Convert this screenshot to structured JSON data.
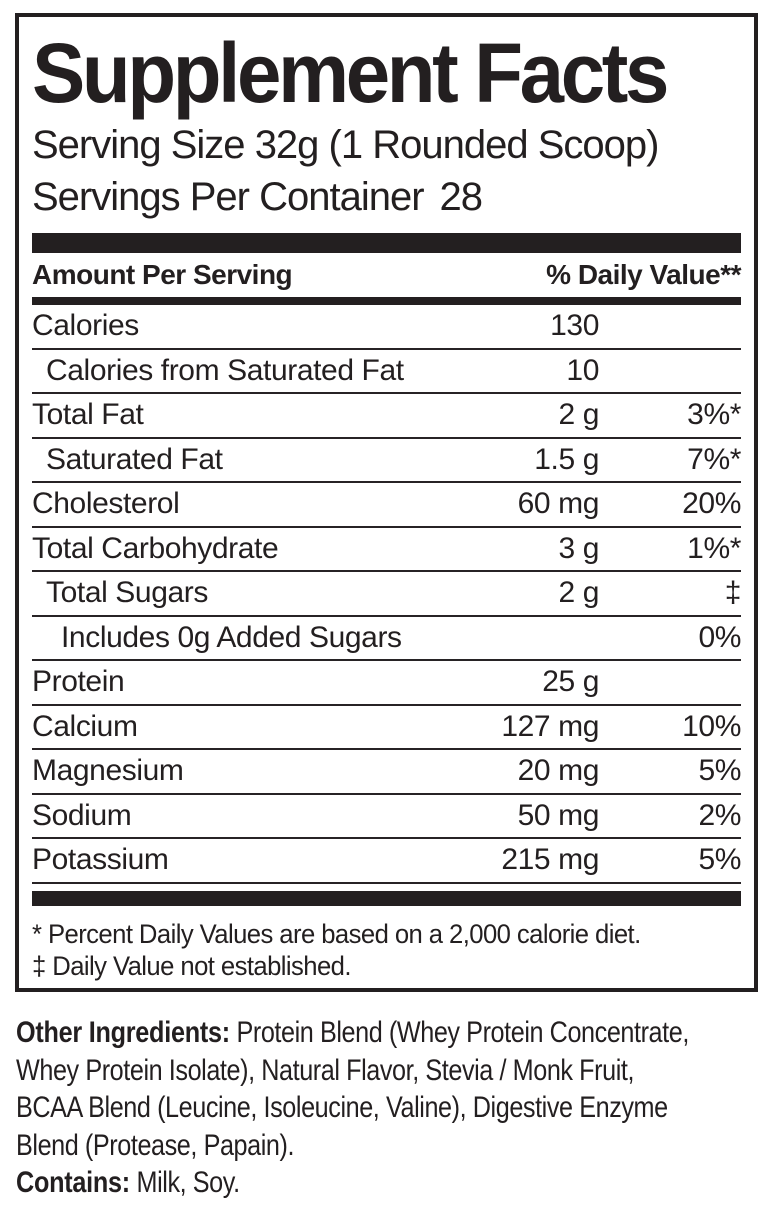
{
  "panel": {
    "title": "Supplement Facts",
    "serving_size_label": "Serving Size",
    "serving_size_value": "32g (1 Rounded Scoop)",
    "servings_per_container_label": "Servings Per Container",
    "servings_per_container_value": "28",
    "column_headers": {
      "left": "Amount Per Serving",
      "right": "% Daily Value**"
    },
    "rows": [
      {
        "name": "Calories",
        "amount": "130",
        "daily_value": "",
        "indent": 0
      },
      {
        "name": "Calories from Saturated Fat",
        "amount": "10",
        "daily_value": "",
        "indent": 1
      },
      {
        "name": "Total Fat",
        "amount": "2 g",
        "daily_value": "3%*",
        "indent": 0
      },
      {
        "name": "Saturated Fat",
        "amount": "1.5 g",
        "daily_value": "7%*",
        "indent": 1
      },
      {
        "name": "Cholesterol",
        "amount": "60 mg",
        "daily_value": "20%",
        "indent": 0
      },
      {
        "name": "Total Carbohydrate",
        "amount": "3 g",
        "daily_value": "1%*",
        "indent": 0
      },
      {
        "name": "Total Sugars",
        "amount": "2 g",
        "daily_value": "‡",
        "indent": 1
      },
      {
        "name": "Includes 0g Added Sugars",
        "amount": "",
        "daily_value": "0%",
        "indent": 2
      },
      {
        "name": "Protein",
        "amount": "25 g",
        "daily_value": "",
        "indent": 0
      },
      {
        "name": "Calcium",
        "amount": "127 mg",
        "daily_value": "10%",
        "indent": 0
      },
      {
        "name": "Magnesium",
        "amount": "20 mg",
        "daily_value": "5%",
        "indent": 0
      },
      {
        "name": "Sodium",
        "amount": "50 mg",
        "daily_value": "2%",
        "indent": 0
      },
      {
        "name": "Potassium",
        "amount": "215 mg",
        "daily_value": "5%",
        "indent": 0
      }
    ],
    "footnotes": [
      "* Percent Daily Values are based on a 2,000 calorie diet.",
      "‡ Daily Value not established."
    ]
  },
  "ingredients": {
    "other_label": "Other Ingredients:",
    "other_lines": [
      "Protein Blend (Whey Protein Concentrate,",
      "Whey Protein Isolate), Natural Flavor, Stevia / Monk Fruit,",
      "BCAA Blend (Leucine, Isoleucine, Valine), Digestive Enzyme",
      "Blend (Protease, Papain)."
    ],
    "contains_label": "Contains:",
    "contains_value": "Milk, Soy."
  },
  "colors": {
    "text": "#231f20",
    "bar": "#231f20",
    "background": "#ffffff"
  }
}
